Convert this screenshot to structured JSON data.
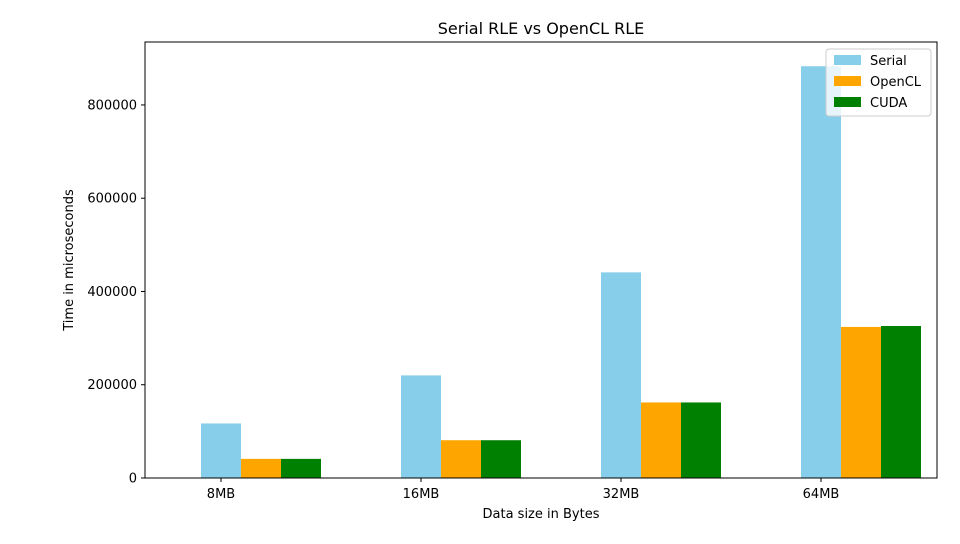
{
  "chart_data": {
    "type": "bar",
    "title": "Serial RLE vs OpenCL RLE",
    "xlabel": "Data size in Bytes",
    "ylabel": "Time in microseconds",
    "categories": [
      "8MB",
      "16MB",
      "32MB",
      "64MB"
    ],
    "series": [
      {
        "name": "Serial",
        "color": "#87ceeb",
        "values": [
          117000,
          220000,
          441000,
          883000
        ]
      },
      {
        "name": "OpenCL",
        "color": "#ffa500",
        "values": [
          41000,
          81000,
          162000,
          324000
        ]
      },
      {
        "name": "CUDA",
        "color": "#008000",
        "values": [
          41000,
          81000,
          162000,
          326000
        ]
      }
    ],
    "yticks": [
      0,
      200000,
      400000,
      600000,
      800000
    ],
    "ylim": [
      0,
      935000
    ],
    "grid": false,
    "legend": "top-right"
  }
}
